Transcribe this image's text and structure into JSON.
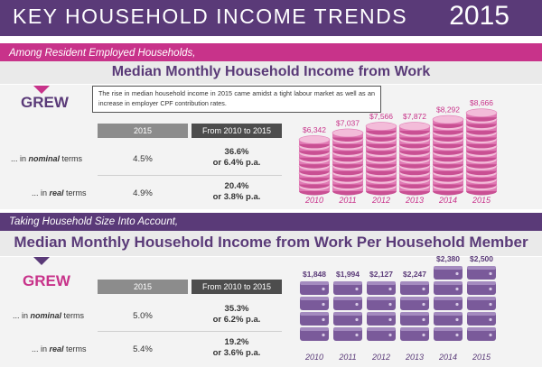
{
  "header": {
    "title": "KEY HOUSEHOLD INCOME TRENDS",
    "year": "2015"
  },
  "section1": {
    "subtitle": "Among Resident Employed Households,",
    "title": "Median Monthly Household Income from Work",
    "grew": "GREW",
    "note": "The rise in median household income in 2015 came amidst a tight labour market as well as an increase in employer CPF contribution rates.",
    "col_headers": [
      "2015",
      "From 2010 to 2015"
    ],
    "rows": [
      {
        "prefix": "... in ",
        "emph": "nominal",
        "suffix": " terms",
        "value": "4.5%",
        "change1": "36.6%",
        "change2": "or 6.4% p.a."
      },
      {
        "prefix": "... in ",
        "emph": "real",
        "suffix": " terms",
        "value": "4.9%",
        "change1": "20.4%",
        "change2": "or 3.8% p.a."
      }
    ]
  },
  "section2": {
    "subtitle": "Taking Household Size Into Account,",
    "title": "Median Monthly Household Income from Work Per Household Member",
    "grew": "GREW",
    "col_headers": [
      "2015",
      "From 2010 to 2015"
    ],
    "rows": [
      {
        "prefix": "... in ",
        "emph": "nominal",
        "suffix": " terms",
        "value": "5.0%",
        "change1": "35.3%",
        "change2": "or 6.2% p.a."
      },
      {
        "prefix": "... in ",
        "emph": "real",
        "suffix": " terms",
        "value": "5.4%",
        "change1": "19.2%",
        "change2": "or 3.6% p.a."
      }
    ]
  },
  "colors": {
    "purple": "#5a3a78",
    "pink": "#c8338a",
    "coin": "#e07ab4",
    "wallet": "#7a5a9a"
  },
  "chart_data": [
    {
      "type": "bar",
      "title": "Median Monthly Household Income from Work",
      "categories": [
        "2010",
        "2011",
        "2012",
        "2013",
        "2014",
        "2015"
      ],
      "values": [
        6342,
        7037,
        7566,
        7872,
        8292,
        8666
      ],
      "labels": [
        "$6,342",
        "$7,037",
        "$7,566",
        "$7,872",
        "$8,292",
        "$8,666"
      ],
      "icon": "coin-stack"
    },
    {
      "type": "bar",
      "title": "Median Monthly Household Income from Work Per Household Member",
      "categories": [
        "2010",
        "2011",
        "2012",
        "2013",
        "2014",
        "2015"
      ],
      "values": [
        1848,
        1994,
        2127,
        2247,
        2380,
        2500
      ],
      "labels": [
        "$1,848",
        "$1,994",
        "$2,127",
        "$2,247",
        "$2,380",
        "$2,500"
      ],
      "icon": "wallet-stack"
    }
  ]
}
